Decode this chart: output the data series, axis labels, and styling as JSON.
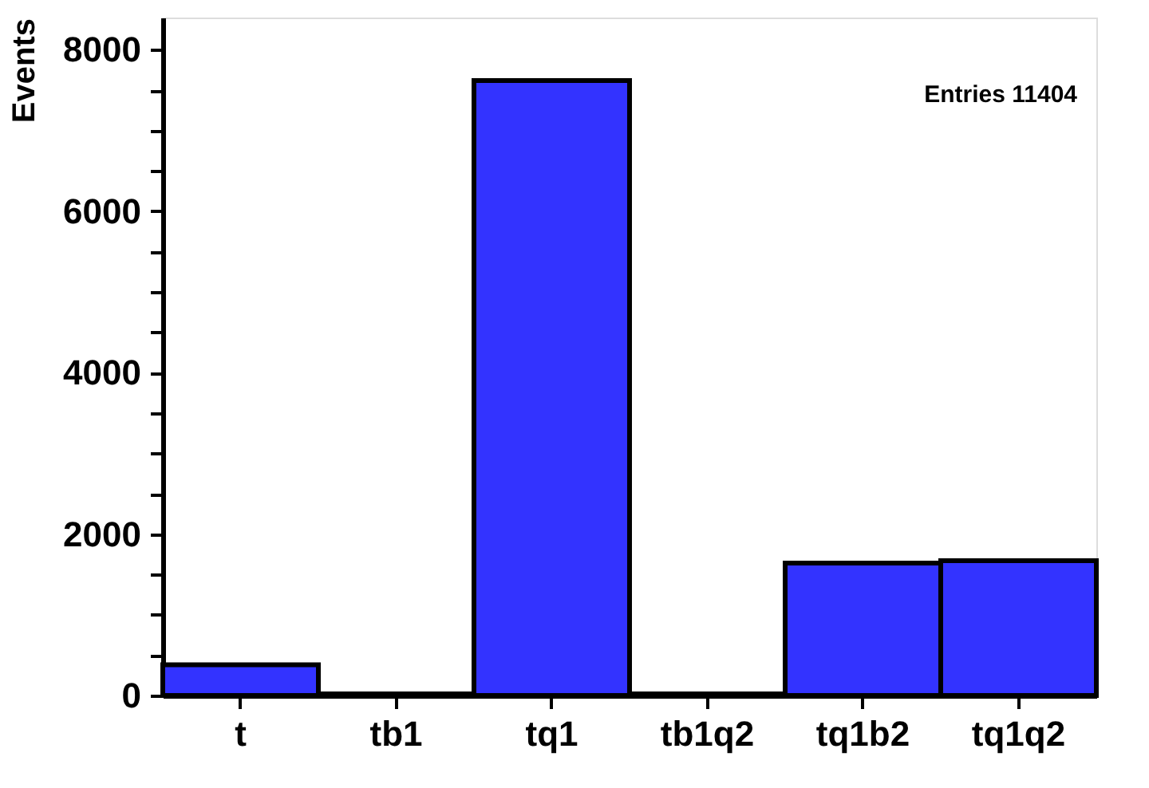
{
  "chart_data": {
    "type": "bar",
    "ylabel": "Events",
    "categories": [
      "t",
      "tb1",
      "tq1",
      "tb1q2",
      "tq1b2",
      "tq1q2"
    ],
    "values": [
      380,
      20,
      7620,
      20,
      1640,
      1670
    ],
    "color": "#3333ff",
    "ylim": [
      0,
      8400
    ],
    "yticks": [
      0,
      {
        "value": 500,
        "label": null
      },
      {
        "value": 1000,
        "label": null
      },
      {
        "value": 1500,
        "label": null
      },
      2000,
      {
        "value": 2500,
        "label": null
      },
      {
        "value": 3000,
        "label": null
      },
      {
        "value": 3500,
        "label": null
      },
      4000,
      {
        "value": 4500,
        "label": null
      },
      {
        "value": 5000,
        "label": null
      },
      {
        "value": 5500,
        "label": null
      },
      6000,
      {
        "value": 6500,
        "label": null
      },
      {
        "value": 7000,
        "label": null
      },
      {
        "value": 7500,
        "label": null
      },
      8000
    ],
    "annotations": [
      "Entries  11404"
    ],
    "grid": false
  }
}
